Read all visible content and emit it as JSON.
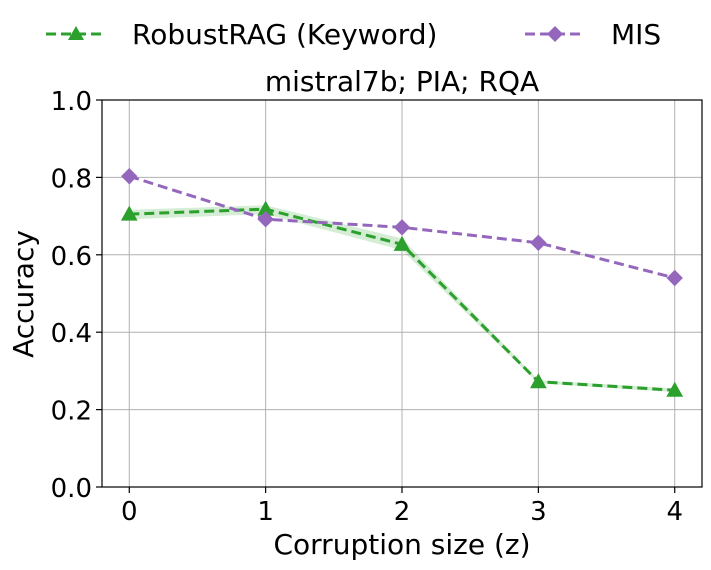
{
  "chart_data": {
    "type": "line",
    "title": "mistral7b; PIA; RQA",
    "xlabel": "Corruption size (z)",
    "ylabel": "Accuracy",
    "x": [
      0,
      1,
      2,
      3,
      4
    ],
    "xlim": [
      -0.2,
      4.2
    ],
    "ylim": [
      0.0,
      1.0
    ],
    "xticks": [
      "0",
      "1",
      "2",
      "3",
      "4"
    ],
    "yticks": [
      "0.0",
      "0.2",
      "0.4",
      "0.6",
      "0.8",
      "1.0"
    ],
    "grid": true,
    "legend_position": "top, above plot",
    "series": [
      {
        "name": "RobustRAG (Keyword)",
        "color": "#2ca02c",
        "marker": "triangle",
        "linestyle": "dashed",
        "values": [
          0.705,
          0.718,
          0.627,
          0.272,
          0.25
        ],
        "band_low": [
          0.692,
          0.705,
          0.612,
          0.268,
          0.245
        ],
        "band_high": [
          0.716,
          0.728,
          0.642,
          0.276,
          0.255
        ]
      },
      {
        "name": "MIS",
        "color": "#9467bd",
        "marker": "diamond",
        "linestyle": "dashed",
        "values": [
          0.803,
          0.692,
          0.671,
          0.631,
          0.54
        ]
      }
    ]
  }
}
